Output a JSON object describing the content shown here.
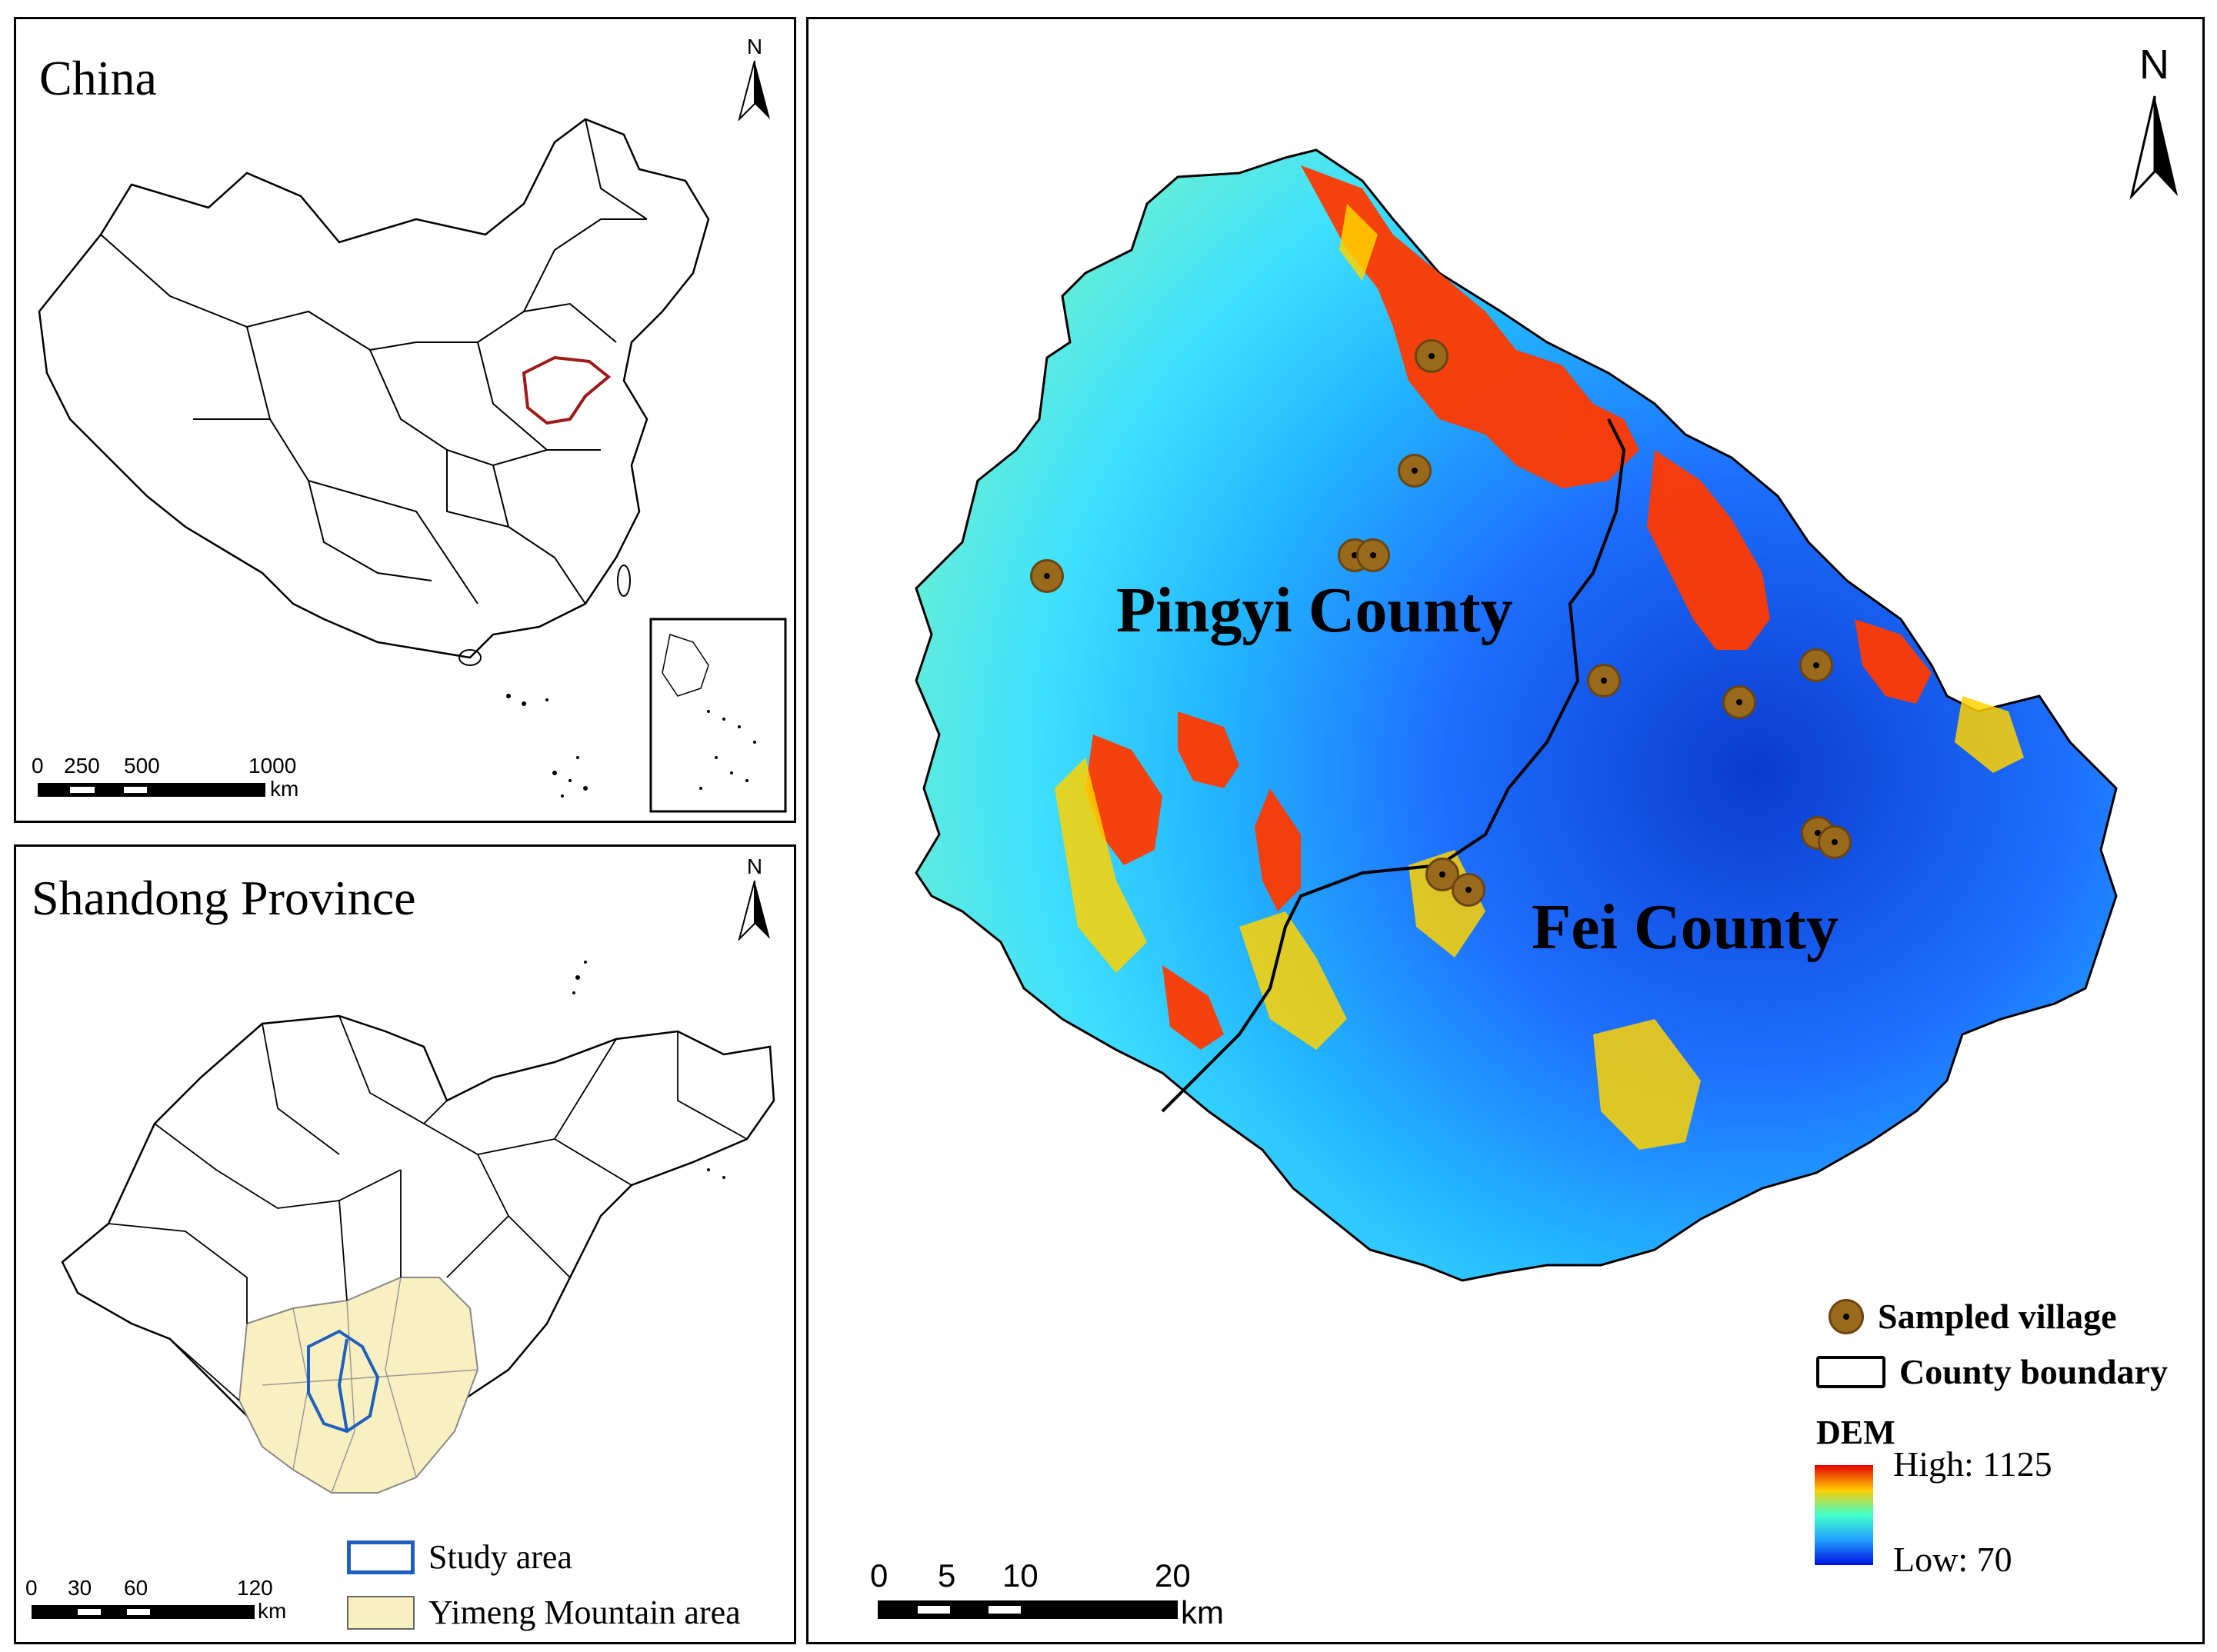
{
  "china_panel": {
    "title": "China",
    "north": "N",
    "scale": {
      "ticks": [
        "0",
        "250",
        "500",
        "1000"
      ],
      "unit": "km"
    }
  },
  "shandong_panel": {
    "title": "Shandong Province",
    "north": "N",
    "scale": {
      "ticks": [
        "0",
        "30",
        "60",
        "120"
      ],
      "unit": "km"
    },
    "legend": {
      "study_area": "Study area",
      "yimeng": "Yimeng Mountain area"
    },
    "colors": {
      "study_area": "#1f5fbf",
      "yimeng": "#f8f0c0"
    }
  },
  "main_map": {
    "north": "N",
    "labels": {
      "pingyi": "Pingyi County",
      "fei": "Fei County"
    },
    "scale": {
      "ticks": [
        "0",
        "5",
        "10",
        "20"
      ],
      "unit": "km"
    },
    "legend": {
      "sampled_village": "Sampled village",
      "county_boundary": "County boundary",
      "dem_title": "DEM",
      "dem_high": "High: 1125",
      "dem_low": "Low: 70"
    },
    "colors": {
      "village": "#9a6a1c",
      "highlight_china": "#a01818"
    }
  }
}
